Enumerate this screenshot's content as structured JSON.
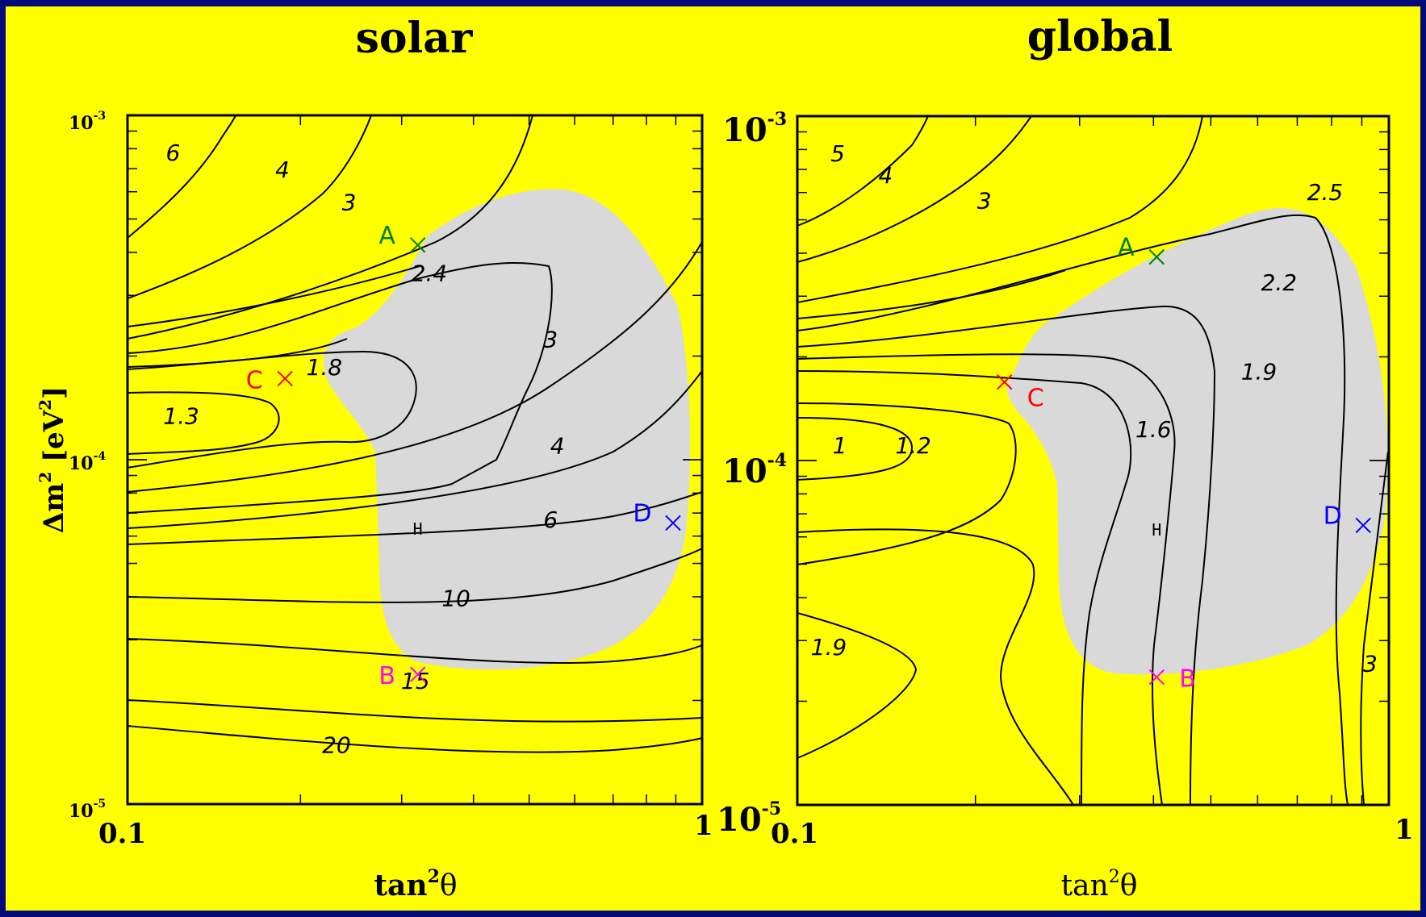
{
  "chart_data": [
    {
      "type": "contour",
      "title": "solar",
      "xlabel_base": "tan",
      "xlabel_sup": "2",
      "xlabel_tail": "θ",
      "ylabel_base": "Δm",
      "ylabel_sup": "2",
      "ylabel_tail": " [eV",
      "ylabel_sup2": "2",
      "ylabel_end": "]",
      "x_scale": "log",
      "y_scale": "log",
      "xlim": [
        0.1,
        1
      ],
      "ylim": [
        1e-05,
        0.001
      ],
      "x_ticks": [
        "0.1",
        "1"
      ],
      "y_ticks": [
        {
          "base": "10",
          "exp": "-5"
        },
        {
          "base": "10",
          "exp": "-4"
        },
        {
          "base": "10",
          "exp": "-3"
        }
      ],
      "contour_labels": [
        {
          "text": "6",
          "x": 0.12,
          "y": 0.00074
        },
        {
          "text": "4",
          "x": 0.186,
          "y": 0.00066
        },
        {
          "text": "3",
          "x": 0.243,
          "y": 0.00053
        },
        {
          "text": "2.4",
          "x": 0.335,
          "y": 0.00033
        },
        {
          "text": "1.8",
          "x": 0.22,
          "y": 0.000176
        },
        {
          "text": "1.3",
          "x": 0.124,
          "y": 0.000127
        },
        {
          "text": "3",
          "x": 0.545,
          "y": 0.000212
        },
        {
          "text": "4",
          "x": 0.56,
          "y": 0.000104
        },
        {
          "text": "6",
          "x": 0.545,
          "y": 6.35e-05
        },
        {
          "text": "10",
          "x": 0.373,
          "y": 3.76e-05
        },
        {
          "text": "15",
          "x": 0.317,
          "y": 2.16e-05
        },
        {
          "text": "20",
          "x": 0.231,
          "y": 1.41e-05
        }
      ],
      "points": [
        {
          "name": "A",
          "x": 0.32,
          "y": 0.00042,
          "color": "#008000"
        },
        {
          "name": "B",
          "x": 0.32,
          "y": 2.38e-05,
          "color": "#ff00ff"
        },
        {
          "name": "C",
          "x": 0.188,
          "y": 0.000172,
          "color": "#ff0000"
        },
        {
          "name": "D",
          "x": 0.89,
          "y": 6.55e-05,
          "color": "#0000ff"
        }
      ],
      "marker": {
        "text": "H",
        "x": 0.32,
        "y": 6.05e-05
      }
    },
    {
      "type": "contour",
      "title": "global",
      "xlabel_base": "tan",
      "xlabel_sup": "2",
      "xlabel_tail": "θ",
      "x_scale": "log",
      "y_scale": "log",
      "xlim": [
        0.1,
        1
      ],
      "ylim": [
        1e-05,
        0.001
      ],
      "x_ticks": [
        "0.1",
        "1"
      ],
      "y_ticks": [
        {
          "base": "10",
          "exp": "-5"
        },
        {
          "base": "10",
          "exp": "-4"
        },
        {
          "base": "10",
          "exp": "-3"
        }
      ],
      "contour_labels": [
        {
          "text": "5",
          "x": 0.117,
          "y": 0.00074
        },
        {
          "text": "4",
          "x": 0.141,
          "y": 0.00064
        },
        {
          "text": "3",
          "x": 0.207,
          "y": 0.00054
        },
        {
          "text": "2.5",
          "x": 0.78,
          "y": 0.00057
        },
        {
          "text": "2.2",
          "x": 0.652,
          "y": 0.000312
        },
        {
          "text": "1.9",
          "x": 0.603,
          "y": 0.000172
        },
        {
          "text": "1.6",
          "x": 0.4,
          "y": 0.000117
        },
        {
          "text": "1.2",
          "x": 0.157,
          "y": 0.000105
        },
        {
          "text": "1",
          "x": 0.118,
          "y": 0.000105
        },
        {
          "text": "1.9",
          "x": 0.113,
          "y": 2.73e-05
        },
        {
          "text": "3",
          "x": 0.93,
          "y": 2.44e-05
        }
      ],
      "points": [
        {
          "name": "A",
          "x": 0.405,
          "y": 0.00039,
          "color": "#008000"
        },
        {
          "name": "B",
          "x": 0.405,
          "y": 2.35e-05,
          "color": "#ff00ff"
        },
        {
          "name": "C",
          "x": 0.224,
          "y": 0.000169,
          "color": "#ff0000"
        },
        {
          "name": "D",
          "x": 0.905,
          "y": 6.48e-05,
          "color": "#0000ff"
        }
      ],
      "marker": {
        "text": "H",
        "x": 0.405,
        "y": 6.05e-05
      }
    }
  ]
}
